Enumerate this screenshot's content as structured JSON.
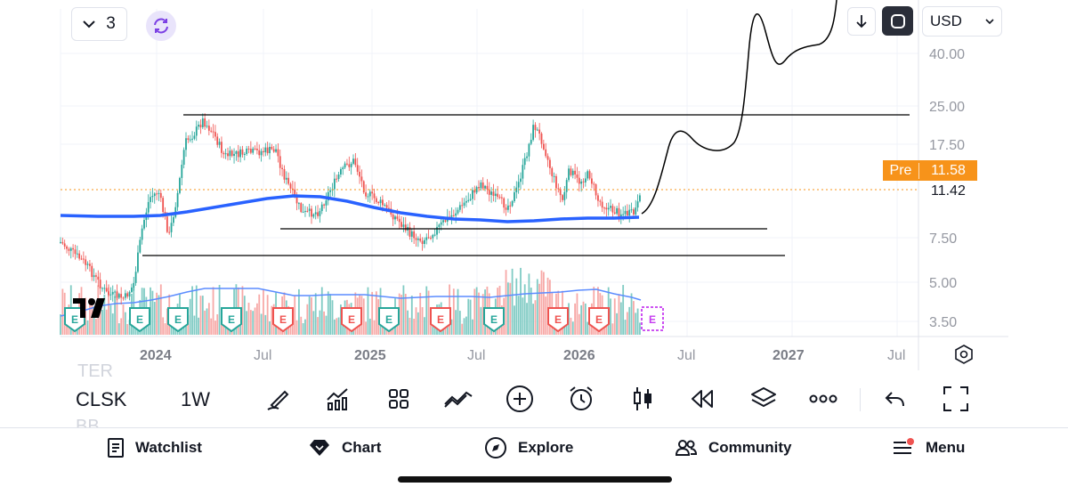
{
  "header": {
    "interval_count": "3",
    "currency": "USD"
  },
  "price_scale": {
    "ticks": [
      "40.00",
      "25.00",
      "17.50",
      "7.50",
      "5.00",
      "3.50"
    ],
    "pre_label": "Pre",
    "pre_value": "11.58",
    "last_price": "11.42"
  },
  "time_scale": {
    "ticks": [
      "2024",
      "Jul",
      "2025",
      "Jul",
      "2026",
      "Jul",
      "2027",
      "Jul"
    ]
  },
  "earnings_marker": "E",
  "toolbar": {
    "symbol": "CLSK",
    "timeframe": "1W",
    "ghost_symbol_above": "TER",
    "ghost_symbol_below": "BB"
  },
  "tabs": [
    {
      "label": "Watchlist",
      "icon": "watchlist-icon"
    },
    {
      "label": "Chart",
      "icon": "chart-gem-icon"
    },
    {
      "label": "Explore",
      "icon": "compass-icon"
    },
    {
      "label": "Community",
      "icon": "community-icon"
    },
    {
      "label": "Menu",
      "icon": "menu-icon"
    }
  ],
  "colors": {
    "up": "#26a69a",
    "down": "#ef5350",
    "moving_average": "#2962ff",
    "pre_market": "#f7931a",
    "notification_dot": "#ef5350"
  }
}
